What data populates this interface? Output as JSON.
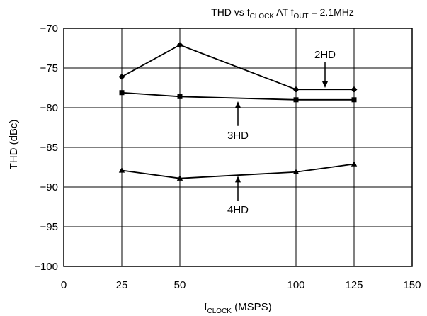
{
  "chart_data": {
    "type": "line",
    "title": {
      "prefix": "THD vs f",
      "sub1": "CLOCK",
      "middle": " AT f",
      "sub2": "OUT",
      "suffix": " = 2.1MHz"
    },
    "xlabel": {
      "main": "f",
      "sub": "CLOCK",
      "rest": " (MSPS)"
    },
    "ylabel": "THD (dBc)",
    "xlim": [
      0,
      150
    ],
    "ylim": [
      -100,
      -70
    ],
    "xticks": [
      0,
      25,
      50,
      100,
      125,
      150
    ],
    "xtick_labels": [
      "0",
      "25",
      "50",
      "100",
      "125",
      "150"
    ],
    "yticks": [
      -70,
      -75,
      -80,
      -85,
      -90,
      -95,
      -100
    ],
    "ytick_labels": [
      "−70",
      "−75",
      "−80",
      "−85",
      "−90",
      "−95",
      "−100"
    ],
    "grid": true,
    "series": [
      {
        "name": "2HD",
        "marker": "diamond",
        "x": [
          25,
          50,
          100,
          125
        ],
        "y": [
          -76.1,
          -72.1,
          -77.7,
          -77.7
        ]
      },
      {
        "name": "3HD",
        "marker": "square",
        "x": [
          25,
          50,
          100,
          125
        ],
        "y": [
          -78.1,
          -78.6,
          -79.0,
          -79.0
        ]
      },
      {
        "name": "4HD",
        "marker": "triangle",
        "x": [
          25,
          50,
          100,
          125
        ],
        "y": [
          -87.9,
          -88.9,
          -88.1,
          -87.1
        ]
      }
    ],
    "annotations": [
      {
        "text": "2HD",
        "arrow_x": 112.5,
        "arrow_y_from": -74.2,
        "arrow_y_to": -77.5,
        "direction": "down"
      },
      {
        "text": "3HD",
        "arrow_x": 75,
        "arrow_y_from": -82.3,
        "arrow_y_to": -79.2,
        "direction": "up"
      },
      {
        "text": "4HD",
        "arrow_x": 75,
        "arrow_y_from": -91.7,
        "arrow_y_to": -88.6,
        "direction": "up"
      }
    ]
  }
}
